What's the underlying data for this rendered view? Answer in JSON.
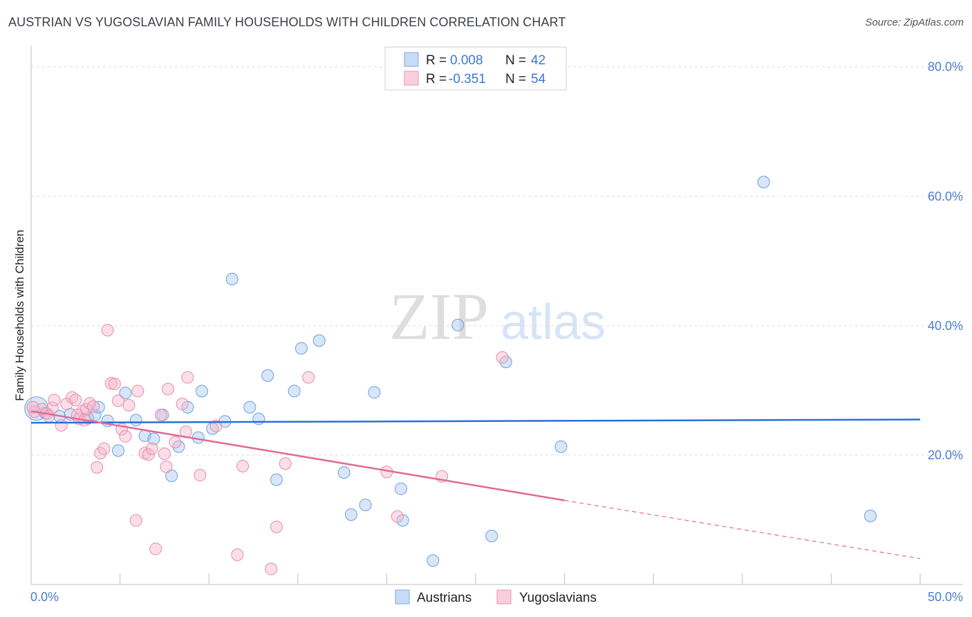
{
  "title": "AUSTRIAN VS YUGOSLAVIAN FAMILY HOUSEHOLDS WITH CHILDREN CORRELATION CHART",
  "source": "Source: ZipAtlas.com",
  "watermark": {
    "zip": "ZIP",
    "atlas": "atlas"
  },
  "legend": {
    "r_label": "R =",
    "n_label": "N =",
    "rows": [
      {
        "r": "0.008",
        "n": "42",
        "color": "#a9c8f0"
      },
      {
        "r": "-0.351",
        "n": "54",
        "color": "#f5b8cc"
      }
    ]
  },
  "bottom_legend": [
    "Austrians",
    "Yugoslavians"
  ],
  "chart_data": {
    "type": "scatter",
    "title": "AUSTRIAN VS YUGOSLAVIAN FAMILY HOUSEHOLDS WITH CHILDREN CORRELATION CHART",
    "xlabel": "",
    "ylabel": "Family Households with Children",
    "xlim": [
      0,
      50
    ],
    "ylim": [
      0,
      82
    ],
    "x_tick_labels": [
      "0.0%",
      "50.0%"
    ],
    "y_ticks": [
      20,
      40,
      60,
      80
    ],
    "y_tick_labels": [
      "20.0%",
      "40.0%",
      "60.0%",
      "80.0%"
    ],
    "series": [
      {
        "name": "Austrians",
        "color": "#a9c8f0",
        "stroke": "#6b9ee0",
        "trend": {
          "x0": 0,
          "y0": 25.0,
          "x1": 50,
          "y1": 25.5,
          "color": "#2a6fd6"
        },
        "points": [
          [
            0.3,
            27.2
          ],
          [
            0.8,
            26.5
          ],
          [
            1.6,
            26.0
          ],
          [
            2.2,
            26.3
          ],
          [
            3.2,
            25.7
          ],
          [
            3.6,
            26.2
          ],
          [
            3.8,
            27.4
          ],
          [
            4.3,
            25.3
          ],
          [
            4.9,
            20.7
          ],
          [
            5.3,
            29.6
          ],
          [
            5.9,
            25.4
          ],
          [
            6.4,
            23.0
          ],
          [
            6.9,
            22.5
          ],
          [
            7.4,
            26.2
          ],
          [
            7.9,
            16.8
          ],
          [
            8.3,
            21.3
          ],
          [
            8.8,
            27.4
          ],
          [
            9.4,
            22.7
          ],
          [
            9.6,
            29.9
          ],
          [
            10.2,
            24.1
          ],
          [
            10.9,
            25.2
          ],
          [
            11.3,
            47.2
          ],
          [
            12.3,
            27.4
          ],
          [
            12.8,
            25.6
          ],
          [
            13.3,
            32.3
          ],
          [
            13.8,
            16.2
          ],
          [
            14.8,
            29.9
          ],
          [
            15.2,
            36.5
          ],
          [
            16.2,
            37.7
          ],
          [
            17.6,
            17.3
          ],
          [
            18.0,
            10.8
          ],
          [
            18.8,
            12.3
          ],
          [
            19.3,
            29.7
          ],
          [
            20.8,
            14.8
          ],
          [
            20.9,
            9.9
          ],
          [
            22.6,
            3.7
          ],
          [
            24.0,
            40.1
          ],
          [
            25.9,
            7.5
          ],
          [
            26.7,
            34.4
          ],
          [
            29.8,
            21.3
          ],
          [
            41.2,
            62.2
          ],
          [
            47.2,
            10.6
          ]
        ]
      },
      {
        "name": "Yugoslavians",
        "color": "#f5b8cc",
        "stroke": "#e88aa8",
        "trend": {
          "x0": 0,
          "y0": 26.8,
          "x1": 30,
          "y1": 13.0,
          "x_dash_end": 50,
          "y_dash_end": 4.0,
          "color": "#e06a94"
        },
        "points": [
          [
            0.2,
            26.7
          ],
          [
            0.6,
            27.1
          ],
          [
            0.9,
            26.4
          ],
          [
            1.2,
            27.3
          ],
          [
            1.3,
            28.5
          ],
          [
            1.7,
            24.6
          ],
          [
            2.0,
            27.9
          ],
          [
            2.3,
            28.9
          ],
          [
            2.5,
            28.5
          ],
          [
            2.7,
            25.6
          ],
          [
            2.9,
            26.8
          ],
          [
            3.1,
            27.1
          ],
          [
            3.3,
            28.0
          ],
          [
            3.5,
            27.5
          ],
          [
            3.7,
            18.1
          ],
          [
            3.9,
            20.3
          ],
          [
            4.1,
            21.0
          ],
          [
            4.3,
            39.3
          ],
          [
            4.5,
            31.1
          ],
          [
            4.7,
            31.0
          ],
          [
            4.9,
            28.4
          ],
          [
            5.1,
            24.0
          ],
          [
            5.3,
            22.9
          ],
          [
            5.5,
            27.7
          ],
          [
            5.9,
            9.9
          ],
          [
            6.0,
            29.9
          ],
          [
            6.4,
            20.3
          ],
          [
            6.6,
            20.1
          ],
          [
            6.8,
            21.0
          ],
          [
            7.0,
            5.5
          ],
          [
            7.3,
            26.2
          ],
          [
            7.5,
            20.2
          ],
          [
            7.6,
            18.2
          ],
          [
            7.7,
            30.2
          ],
          [
            8.1,
            22.0
          ],
          [
            8.5,
            27.9
          ],
          [
            8.7,
            23.6
          ],
          [
            8.8,
            32.0
          ],
          [
            9.5,
            16.9
          ],
          [
            10.4,
            24.5
          ],
          [
            11.6,
            4.6
          ],
          [
            11.9,
            18.3
          ],
          [
            13.5,
            2.4
          ],
          [
            13.8,
            8.9
          ],
          [
            14.3,
            18.7
          ],
          [
            15.6,
            32.0
          ],
          [
            20.0,
            17.4
          ],
          [
            20.6,
            10.5
          ],
          [
            23.1,
            16.7
          ],
          [
            26.5,
            35.1
          ],
          [
            0.1,
            27.4
          ],
          [
            1.0,
            26.0
          ],
          [
            2.6,
            26.2
          ],
          [
            3.0,
            25.4
          ]
        ]
      }
    ]
  }
}
